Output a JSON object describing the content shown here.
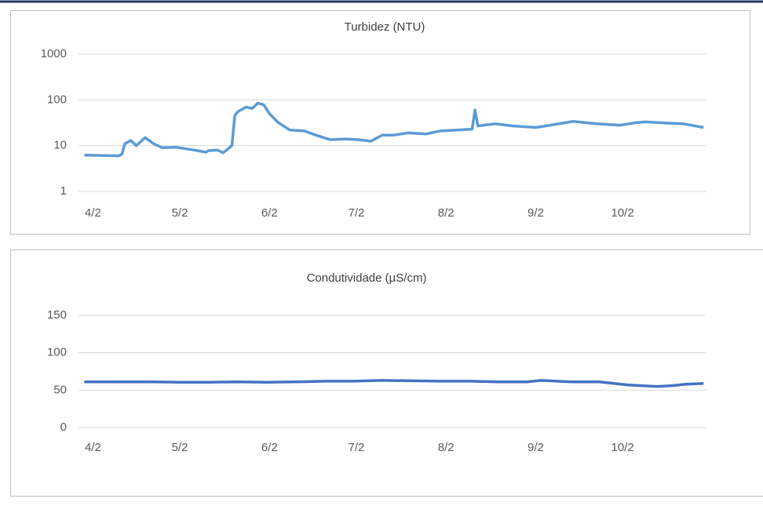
{
  "chart_data": [
    {
      "type": "line",
      "title": "Turbidez (NTU)",
      "log_scale": true,
      "grid": true,
      "color": "#5b9bd5",
      "x": [
        -3,
        9,
        10,
        11,
        13,
        15,
        18,
        21,
        24,
        29,
        35,
        39,
        40,
        43,
        45,
        48,
        49,
        50,
        53,
        55,
        57,
        59,
        61,
        64,
        68,
        73,
        77,
        82,
        87,
        92,
        96,
        100,
        104,
        109,
        115,
        120,
        126,
        131,
        132,
        133,
        139,
        145,
        153,
        158,
        166,
        174,
        182,
        188,
        191,
        199,
        204,
        211
      ],
      "values": [
        6.2,
        6,
        6.5,
        11,
        13,
        10,
        15,
        11,
        9,
        9.2,
        8,
        7.2,
        7.8,
        8,
        7,
        10,
        45,
        55,
        70,
        65,
        85,
        78,
        50,
        32,
        22,
        21,
        17,
        13.5,
        14,
        13.5,
        12.5,
        17,
        17,
        19,
        18,
        21,
        22,
        23,
        60,
        27,
        30,
        27,
        25,
        28,
        34,
        30,
        28,
        32,
        33,
        31,
        30,
        25
      ],
      "xlim": [
        -5,
        212
      ],
      "xticks": [
        {
          "value": 0,
          "label": "4/2"
        },
        {
          "value": 30,
          "label": "5/2"
        },
        {
          "value": 61,
          "label": "6/2"
        },
        {
          "value": 91,
          "label": "7/2"
        },
        {
          "value": 122,
          "label": "8/2"
        },
        {
          "value": 153,
          "label": "9/2"
        },
        {
          "value": 183,
          "label": "10/2"
        }
      ],
      "ylim": [
        1,
        1000
      ],
      "yticks": [
        1,
        10,
        100,
        1000
      ]
    },
    {
      "type": "line",
      "title": "Condutividade (µS/cm)",
      "log_scale": false,
      "grid": true,
      "color": "#4472c4",
      "x": [
        -3,
        10,
        20,
        30,
        40,
        50,
        60,
        70,
        80,
        90,
        100,
        110,
        120,
        130,
        140,
        150,
        155,
        165,
        175,
        185,
        195,
        200,
        205,
        211
      ],
      "values": [
        61,
        61,
        61,
        60.5,
        60.5,
        61,
        60.5,
        61,
        62,
        62,
        63,
        62.5,
        62,
        62,
        61,
        61,
        63,
        61,
        61,
        57,
        55,
        56,
        58,
        59
      ],
      "xlim": [
        -5,
        212
      ],
      "xticks": [
        {
          "value": 0,
          "label": "4/2"
        },
        {
          "value": 30,
          "label": "5/2"
        },
        {
          "value": 61,
          "label": "6/2"
        },
        {
          "value": 91,
          "label": "7/2"
        },
        {
          "value": 122,
          "label": "8/2"
        },
        {
          "value": 153,
          "label": "9/2"
        },
        {
          "value": 183,
          "label": "10/2"
        }
      ],
      "ylim": [
        0,
        150
      ],
      "yticks": [
        0,
        50,
        100,
        150
      ]
    }
  ]
}
